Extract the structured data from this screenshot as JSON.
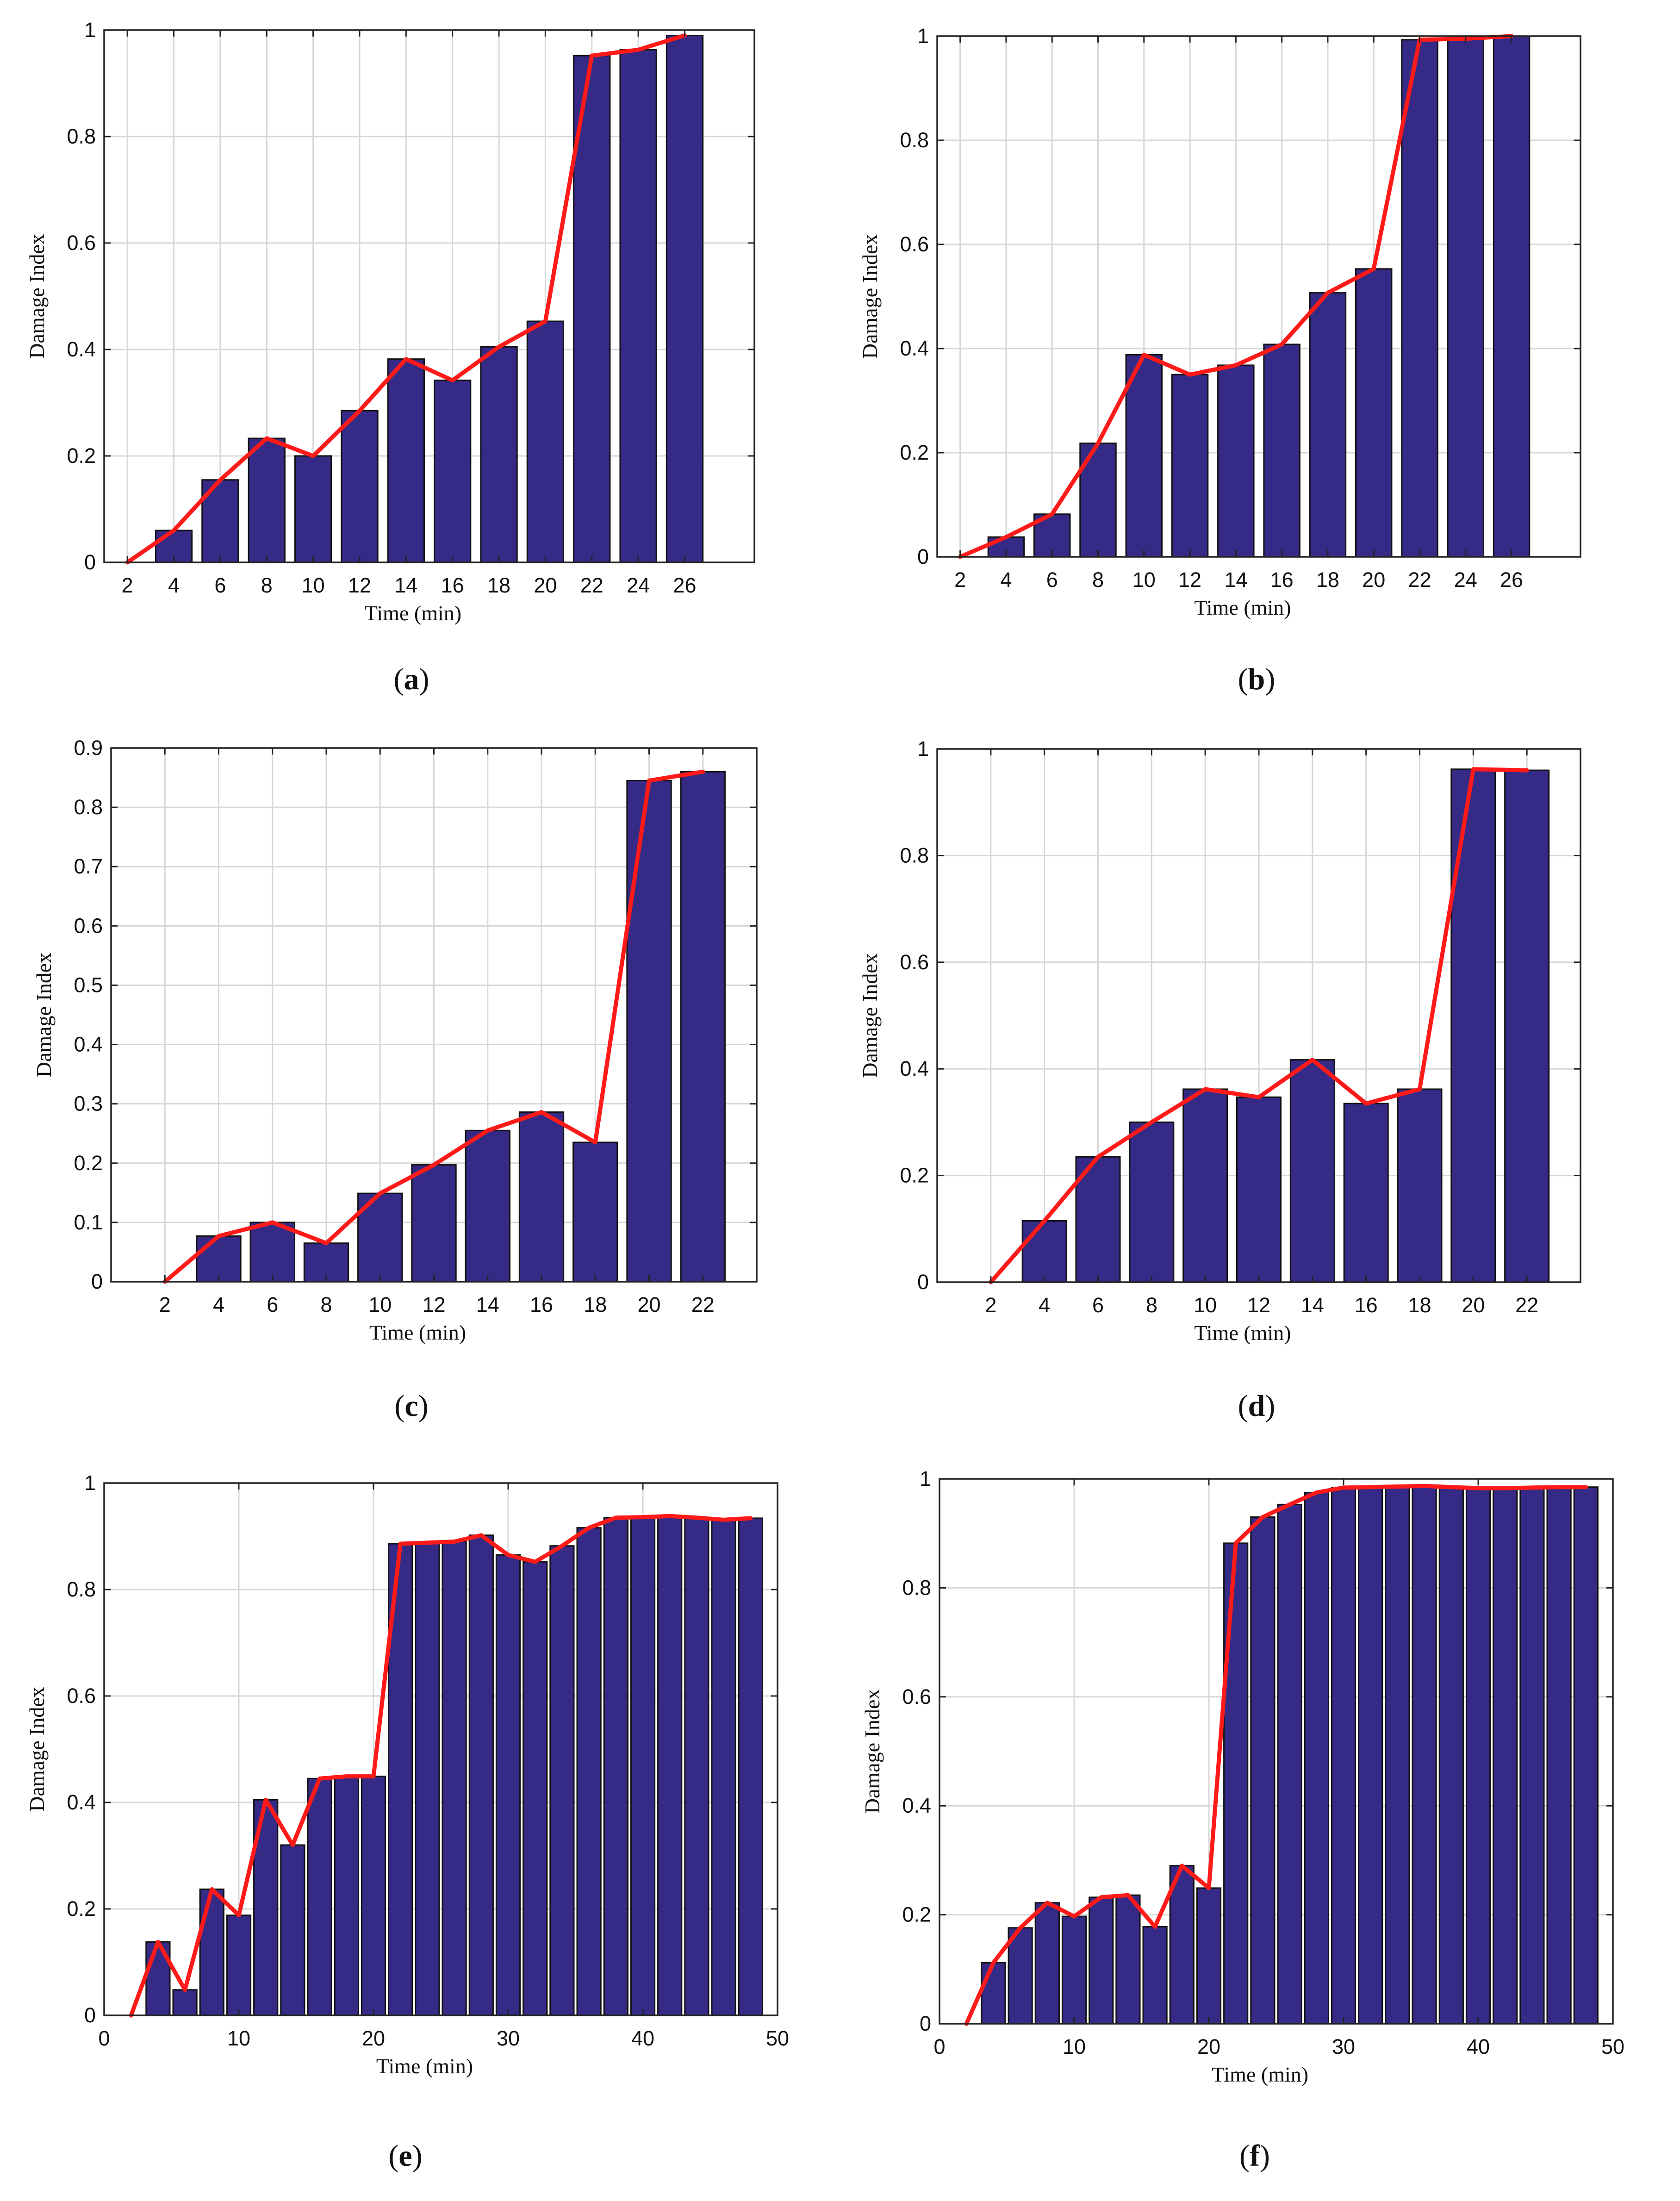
{
  "colors": {
    "bar": "#352a86",
    "line": "#ff1a1a"
  },
  "chart_data": [
    {
      "id": "a",
      "caption_letter": "a",
      "type": "bar",
      "xlabel": "Time (min)",
      "ylabel": "Damage Index",
      "xlim": [
        1,
        29
      ],
      "ylim": [
        0,
        1
      ],
      "xticks": [
        2,
        4,
        6,
        8,
        10,
        12,
        14,
        16,
        18,
        20,
        22,
        24,
        26
      ],
      "yticks": [
        0,
        0.2,
        0.4,
        0.6,
        0.8,
        1
      ],
      "ytick_labels": [
        "0",
        "0.2",
        "0.4",
        "0.6",
        "0.8",
        "1"
      ],
      "x": [
        2,
        4,
        6,
        8,
        10,
        12,
        14,
        16,
        18,
        20,
        22,
        24,
        26
      ],
      "values": [
        0,
        0.06,
        0.155,
        0.233,
        0.2,
        0.285,
        0.382,
        0.342,
        0.405,
        0.453,
        0.952,
        0.963,
        0.99
      ],
      "grid": true
    },
    {
      "id": "b",
      "caption_letter": "b",
      "type": "bar",
      "xlabel": "Time (min)",
      "ylabel": "Damage Index",
      "xlim": [
        1,
        29
      ],
      "ylim": [
        0,
        1
      ],
      "xticks": [
        2,
        4,
        6,
        8,
        10,
        12,
        14,
        16,
        18,
        20,
        22,
        24,
        26
      ],
      "yticks": [
        0,
        0.2,
        0.4,
        0.6,
        0.8,
        1
      ],
      "ytick_labels": [
        "0",
        "0.2",
        "0.4",
        "0.6",
        "0.8",
        "1"
      ],
      "x": [
        2,
        4,
        6,
        8,
        10,
        12,
        14,
        16,
        18,
        20,
        22,
        24,
        26
      ],
      "values": [
        0,
        0.038,
        0.082,
        0.218,
        0.388,
        0.35,
        0.368,
        0.408,
        0.507,
        0.553,
        0.993,
        0.995,
        1.0
      ],
      "grid": true
    },
    {
      "id": "c",
      "caption_letter": "c",
      "type": "bar",
      "xlabel": "Time (min)",
      "ylabel": "Damage Index",
      "xlim": [
        0,
        24
      ],
      "ylim": [
        0,
        0.9
      ],
      "xticks": [
        2,
        4,
        6,
        8,
        10,
        12,
        14,
        16,
        18,
        20,
        22
      ],
      "yticks": [
        0,
        0.1,
        0.2,
        0.3,
        0.4,
        0.5,
        0.6,
        0.7,
        0.8,
        0.9
      ],
      "ytick_labels": [
        "0",
        "0.1",
        "0.2",
        "0.3",
        "0.4",
        "0.5",
        "0.6",
        "0.7",
        "0.8",
        "0.9"
      ],
      "x": [
        2,
        4,
        6,
        8,
        10,
        12,
        14,
        16,
        18,
        20,
        22
      ],
      "values": [
        0,
        0.077,
        0.1,
        0.065,
        0.149,
        0.197,
        0.255,
        0.286,
        0.235,
        0.845,
        0.86
      ],
      "grid": true
    },
    {
      "id": "d",
      "caption_letter": "d",
      "type": "bar",
      "xlabel": "Time (min)",
      "ylabel": "Damage Index",
      "xlim": [
        0,
        24
      ],
      "ylim": [
        0,
        1
      ],
      "xticks": [
        2,
        4,
        6,
        8,
        10,
        12,
        14,
        16,
        18,
        20,
        22
      ],
      "yticks": [
        0,
        0.2,
        0.4,
        0.6,
        0.8,
        1
      ],
      "ytick_labels": [
        "0",
        "0.2",
        "0.4",
        "0.6",
        "0.8",
        "1"
      ],
      "x": [
        2,
        4,
        6,
        8,
        10,
        12,
        14,
        16,
        18,
        20,
        22
      ],
      "values": [
        0,
        0.115,
        0.235,
        0.3,
        0.362,
        0.347,
        0.417,
        0.335,
        0.362,
        0.962,
        0.96
      ],
      "grid": true
    },
    {
      "id": "e",
      "caption_letter": "e",
      "type": "bar",
      "xlabel": "Time (min)",
      "ylabel": "Damage Index",
      "xlim": [
        0,
        50
      ],
      "ylim": [
        0,
        1
      ],
      "xticks": [
        0,
        10,
        20,
        30,
        40,
        50
      ],
      "yticks": [
        0,
        0.2,
        0.4,
        0.6,
        0.8,
        1
      ],
      "ytick_labels": [
        "0",
        "0.2",
        "0.4",
        "0.6",
        "0.8",
        "1"
      ],
      "x": [
        2,
        4,
        6,
        8,
        10,
        12,
        14,
        16,
        18,
        20,
        22,
        24,
        26,
        28,
        30,
        32,
        34,
        36,
        38,
        40,
        42,
        44,
        46,
        48
      ],
      "values": [
        0,
        0.138,
        0.048,
        0.237,
        0.188,
        0.405,
        0.32,
        0.445,
        0.449,
        0.449,
        0.886,
        0.888,
        0.89,
        0.902,
        0.865,
        0.852,
        0.882,
        0.916,
        0.935,
        0.936,
        0.938,
        0.935,
        0.931,
        0.934
      ],
      "grid": true
    },
    {
      "id": "f",
      "caption_letter": "f",
      "type": "bar",
      "xlabel": "Time (min)",
      "ylabel": "Damage Index",
      "xlim": [
        0,
        50
      ],
      "ylim": [
        0,
        1
      ],
      "xticks": [
        0,
        10,
        20,
        30,
        40,
        50
      ],
      "yticks": [
        0,
        0.2,
        0.4,
        0.6,
        0.8,
        1
      ],
      "ytick_labels": [
        "0",
        "0.2",
        "0.4",
        "0.6",
        "0.8",
        "1"
      ],
      "x": [
        2,
        4,
        6,
        8,
        10,
        12,
        14,
        16,
        18,
        20,
        22,
        24,
        26,
        28,
        30,
        32,
        34,
        36,
        38,
        40,
        42,
        44,
        46,
        48
      ],
      "values": [
        0,
        0.112,
        0.176,
        0.222,
        0.197,
        0.232,
        0.236,
        0.178,
        0.29,
        0.249,
        0.882,
        0.93,
        0.953,
        0.975,
        0.984,
        0.985,
        0.986,
        0.987,
        0.985,
        0.983,
        0.983,
        0.984,
        0.985,
        0.985
      ],
      "grid": true
    }
  ]
}
